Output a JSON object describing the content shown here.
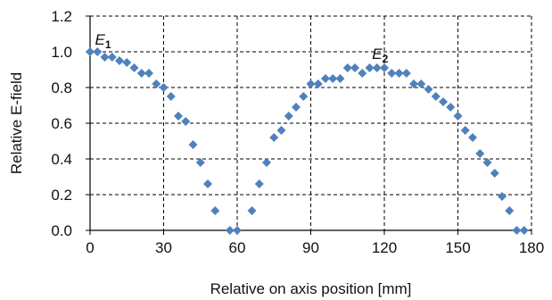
{
  "chart_data": {
    "type": "scatter",
    "title": "",
    "xlabel": "Relative on axis position [mm]",
    "ylabel": "Relative E-field",
    "xlim": [
      0,
      180
    ],
    "ylim": [
      0.0,
      1.2
    ],
    "xticks": [
      0,
      30,
      60,
      90,
      120,
      150,
      180
    ],
    "xtick_labels": [
      "0",
      "30",
      "60",
      "90",
      "120",
      "150",
      "180"
    ],
    "yticks": [
      0.0,
      0.2,
      0.4,
      0.6,
      0.8,
      1.0,
      1.2
    ],
    "ytick_labels": [
      "0.0",
      "0.2",
      "0.4",
      "0.6",
      "0.8",
      "1.0",
      "1.2"
    ],
    "grid": true,
    "grid_style": "dashed",
    "marker": "diamond",
    "marker_color": "#4F81BD",
    "points": [
      [
        0,
        1.0
      ],
      [
        3,
        1.0
      ],
      [
        6,
        0.97
      ],
      [
        9,
        0.97
      ],
      [
        12,
        0.95
      ],
      [
        15,
        0.94
      ],
      [
        18,
        0.91
      ],
      [
        21,
        0.88
      ],
      [
        24,
        0.88
      ],
      [
        27,
        0.82
      ],
      [
        30,
        0.8
      ],
      [
        33,
        0.75
      ],
      [
        36,
        0.64
      ],
      [
        39,
        0.61
      ],
      [
        42,
        0.48
      ],
      [
        45,
        0.38
      ],
      [
        48,
        0.26
      ],
      [
        51,
        0.11
      ],
      [
        57,
        0.0
      ],
      [
        60,
        0.0
      ],
      [
        66,
        0.11
      ],
      [
        69,
        0.26
      ],
      [
        72,
        0.38
      ],
      [
        75,
        0.52
      ],
      [
        78,
        0.56
      ],
      [
        81,
        0.64
      ],
      [
        84,
        0.69
      ],
      [
        87,
        0.75
      ],
      [
        90,
        0.82
      ],
      [
        93,
        0.82
      ],
      [
        96,
        0.85
      ],
      [
        99,
        0.85
      ],
      [
        102,
        0.85
      ],
      [
        105,
        0.91
      ],
      [
        108,
        0.91
      ],
      [
        111,
        0.88
      ],
      [
        114,
        0.91
      ],
      [
        117,
        0.91
      ],
      [
        120,
        0.91
      ],
      [
        123,
        0.88
      ],
      [
        126,
        0.88
      ],
      [
        129,
        0.88
      ],
      [
        132,
        0.82
      ],
      [
        135,
        0.82
      ],
      [
        138,
        0.79
      ],
      [
        141,
        0.75
      ],
      [
        144,
        0.72
      ],
      [
        147,
        0.69
      ],
      [
        150,
        0.64
      ],
      [
        153,
        0.56
      ],
      [
        156,
        0.52
      ],
      [
        159,
        0.43
      ],
      [
        162,
        0.38
      ],
      [
        165,
        0.32
      ],
      [
        168,
        0.19
      ],
      [
        171,
        0.11
      ],
      [
        174,
        0.0
      ],
      [
        177,
        0.0
      ]
    ],
    "annotations": [
      {
        "main": "E",
        "sub": "1",
        "x": 2,
        "y": 1.04
      },
      {
        "main": "E",
        "sub": "2",
        "x": 115,
        "y": 0.96
      }
    ]
  }
}
